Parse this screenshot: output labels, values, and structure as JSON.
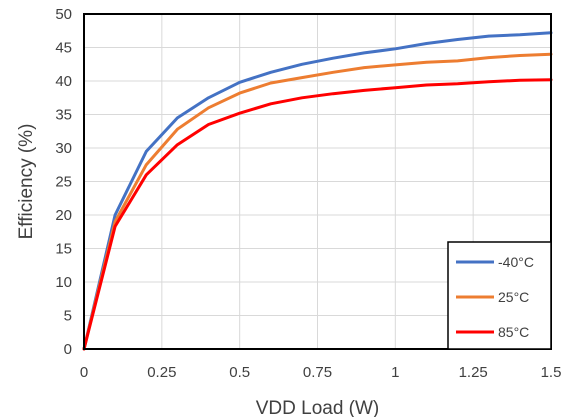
{
  "chart_data": {
    "type": "line",
    "title": "",
    "xlabel": "VDD Load (W)",
    "ylabel": "Efficiency (%)",
    "xlim": [
      0,
      1.5
    ],
    "ylim": [
      0,
      50
    ],
    "x_ticks": [
      "0",
      "0.25",
      "0.5",
      "0.75",
      "1",
      "1.25",
      "1.5"
    ],
    "y_ticks": [
      "0",
      "5",
      "10",
      "15",
      "20",
      "25",
      "30",
      "35",
      "40",
      "45",
      "50"
    ],
    "grid": "on",
    "legend_position": "bottom-right",
    "x": [
      0,
      0.1,
      0.2,
      0.3,
      0.4,
      0.5,
      0.6,
      0.7,
      0.8,
      0.9,
      1.0,
      1.1,
      1.2,
      1.3,
      1.4,
      1.5
    ],
    "series": [
      {
        "name": "-40°C",
        "color": "#4472C4",
        "values": [
          0,
          20,
          29.5,
          34.5,
          37.5,
          39.8,
          41.3,
          42.5,
          43.4,
          44.2,
          44.8,
          45.6,
          46.2,
          46.7,
          46.9,
          47.2
        ]
      },
      {
        "name": "25°C",
        "color": "#ED7D31",
        "values": [
          0,
          19,
          27.5,
          32.8,
          36,
          38.2,
          39.7,
          40.5,
          41.3,
          42,
          42.4,
          42.8,
          43,
          43.5,
          43.8,
          44
        ]
      },
      {
        "name": "85°C",
        "color": "#FF0000",
        "values": [
          0,
          18.3,
          26,
          30.5,
          33.5,
          35.2,
          36.6,
          37.5,
          38.1,
          38.6,
          39,
          39.4,
          39.6,
          39.9,
          40.1,
          40.2
        ]
      }
    ]
  }
}
